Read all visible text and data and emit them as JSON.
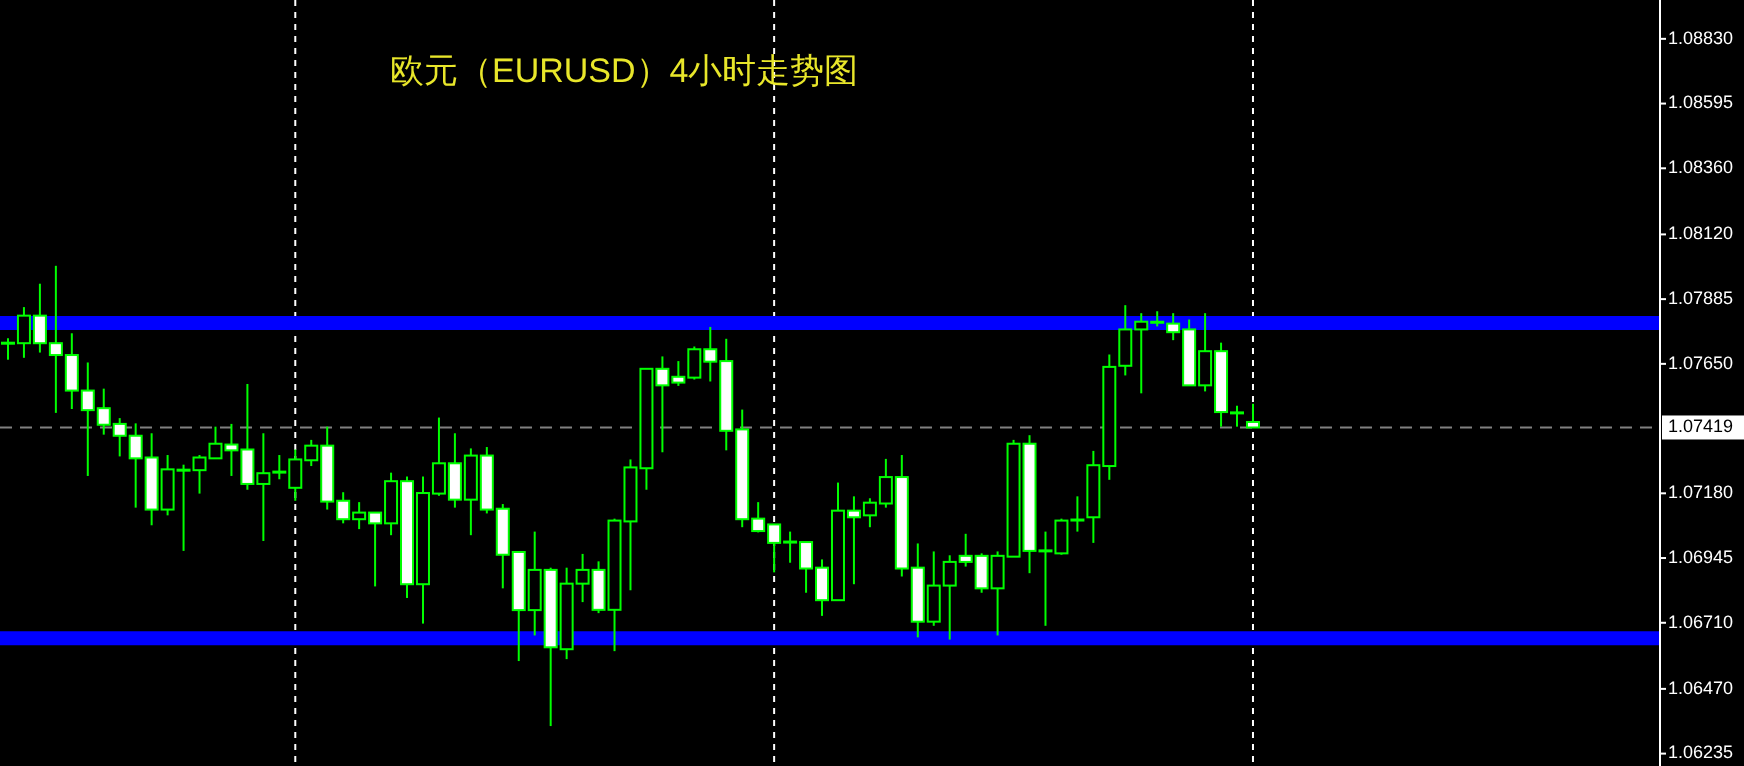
{
  "chart_data": {
    "type": "candlestick",
    "title": "欧元（EURUSD）4小时走势图",
    "categories": [
      null,
      null,
      null,
      null,
      null,
      null,
      null,
      null,
      null,
      null,
      null,
      null,
      null,
      null,
      null,
      null,
      null,
      null,
      null,
      null,
      null,
      null,
      null,
      null,
      null,
      null,
      null,
      null,
      null,
      null,
      null,
      null,
      null,
      null,
      null,
      null,
      null,
      null,
      null,
      null,
      null,
      null,
      null,
      null,
      null,
      null,
      null,
      null,
      null,
      null,
      null,
      null,
      null,
      null,
      null,
      null,
      null,
      null,
      null,
      null,
      null,
      null,
      null,
      null,
      null,
      null,
      null,
      null,
      null,
      null,
      null,
      null,
      null,
      null,
      null,
      null,
      null,
      null,
      null,
      null,
      null,
      null,
      null,
      null,
      null,
      null,
      null,
      null,
      null,
      null,
      null,
      null,
      null,
      null,
      null,
      null,
      null,
      null,
      null,
      null,
      null,
      null,
      null,
      null
    ],
    "ohlc": [
      [
        1.07725,
        1.07743,
        1.07665,
        1.07725
      ],
      [
        1.07725,
        1.07856,
        1.07672,
        1.07825
      ],
      [
        1.07825,
        1.07941,
        1.07691,
        1.07725
      ],
      [
        1.07725,
        1.08006,
        1.07472,
        1.07682
      ],
      [
        1.07682,
        1.07761,
        1.07486,
        1.07553
      ],
      [
        1.07553,
        1.07655,
        1.07243,
        1.07482
      ],
      [
        1.07489,
        1.0756,
        1.07393,
        1.07429
      ],
      [
        1.07432,
        1.07453,
        1.07314,
        1.07389
      ],
      [
        1.07389,
        1.07434,
        1.07128,
        1.07307
      ],
      [
        1.0731,
        1.07398,
        1.07064,
        1.07121
      ],
      [
        1.07121,
        1.07319,
        1.071,
        1.07267
      ],
      [
        1.07264,
        1.07284,
        1.06971,
        1.07264
      ],
      [
        1.07264,
        1.07319,
        1.07179,
        1.0731
      ],
      [
        1.07307,
        1.07422,
        1.07307,
        1.0736
      ],
      [
        1.07357,
        1.07432,
        1.07243,
        1.07336
      ],
      [
        1.07339,
        1.07577,
        1.07193,
        1.07214
      ],
      [
        1.07214,
        1.07398,
        1.07007,
        1.07253
      ],
      [
        1.07257,
        1.07319,
        1.07231,
        1.07257
      ],
      [
        1.072,
        1.07339,
        1.07153,
        1.07303
      ],
      [
        1.073,
        1.07374,
        1.07279,
        1.07353
      ],
      [
        1.07353,
        1.07422,
        1.07121,
        1.0715
      ],
      [
        1.07153,
        1.07184,
        1.07071,
        1.07086
      ],
      [
        1.07086,
        1.07148,
        1.0705,
        1.0711
      ],
      [
        1.0711,
        1.0711,
        1.06842,
        1.07071
      ],
      [
        1.07071,
        1.07255,
        1.07028,
        1.07224
      ],
      [
        1.07224,
        1.07241,
        1.068,
        1.0685
      ],
      [
        1.0685,
        1.07241,
        1.06707,
        1.07181
      ],
      [
        1.07179,
        1.07455,
        1.07171,
        1.07289
      ],
      [
        1.07289,
        1.07398,
        1.07128,
        1.07157
      ],
      [
        1.07157,
        1.07343,
        1.07028,
        1.07317
      ],
      [
        1.07317,
        1.07348,
        1.07107,
        1.07121
      ],
      [
        1.07124,
        1.07141,
        1.06835,
        1.06957
      ],
      [
        1.06967,
        1.06967,
        1.06571,
        1.06756
      ],
      [
        1.06756,
        1.07041,
        1.06664,
        1.06902
      ],
      [
        1.06902,
        1.0691,
        1.06335,
        1.06621
      ],
      [
        1.06614,
        1.0691,
        1.06578,
        1.06852
      ],
      [
        1.06852,
        1.0696,
        1.06785,
        1.06902
      ],
      [
        1.06902,
        1.06933,
        1.06745,
        1.06757
      ],
      [
        1.06757,
        1.07088,
        1.06607,
        1.07081
      ],
      [
        1.07078,
        1.07303,
        1.06828,
        1.07274
      ],
      [
        1.07271,
        1.07632,
        1.07193,
        1.07632
      ],
      [
        1.07632,
        1.07677,
        1.07329,
        1.07572
      ],
      [
        1.07603,
        1.0766,
        1.0757,
        1.07582
      ],
      [
        1.076,
        1.07713,
        1.07593,
        1.07703
      ],
      [
        1.07703,
        1.07784,
        1.07586,
        1.07658
      ],
      [
        1.0766,
        1.07741,
        1.07336,
        1.07407
      ],
      [
        1.07412,
        1.07484,
        1.07057,
        1.07086
      ],
      [
        1.07088,
        1.07148,
        1.07038,
        1.07043
      ],
      [
        1.07067,
        1.07067,
        1.06893,
        1.07
      ],
      [
        1.07003,
        1.07041,
        1.06928,
        1.07003
      ],
      [
        1.07003,
        1.07003,
        1.06819,
        1.06907
      ],
      [
        1.0691,
        1.0694,
        1.06735,
        1.06792
      ],
      [
        1.06792,
        1.07219,
        1.06792,
        1.07117
      ],
      [
        1.07117,
        1.07169,
        1.0685,
        1.07093
      ],
      [
        1.071,
        1.07162,
        1.07057,
        1.07146
      ],
      [
        1.07143,
        1.07305,
        1.07128,
        1.07239
      ],
      [
        1.07239,
        1.07319,
        1.06878,
        1.06907
      ],
      [
        1.0691,
        1.06998,
        1.06657,
        1.06714
      ],
      [
        1.06714,
        1.06969,
        1.06699,
        1.06845
      ],
      [
        1.06845,
        1.06955,
        1.06649,
        1.06931
      ],
      [
        1.06953,
        1.07033,
        1.06914,
        1.06931
      ],
      [
        1.06953,
        1.06962,
        1.06819,
        1.06835
      ],
      [
        1.06835,
        1.06969,
        1.06664,
        1.06953
      ],
      [
        1.0695,
        1.07374,
        1.0695,
        1.0736
      ],
      [
        1.0736,
        1.07391,
        1.0689,
        1.06971
      ],
      [
        1.06971,
        1.07041,
        1.06699,
        1.06971
      ],
      [
        1.06962,
        1.07088,
        1.06957,
        1.07081
      ],
      [
        1.07083,
        1.07169,
        1.07041,
        1.07083
      ],
      [
        1.07093,
        1.07334,
        1.07,
        1.07282
      ],
      [
        1.07279,
        1.07684,
        1.07229,
        1.07639
      ],
      [
        1.07643,
        1.07863,
        1.07608,
        1.07775
      ],
      [
        1.07775,
        1.07834,
        1.07543,
        1.07803
      ],
      [
        1.07801,
        1.07841,
        1.07786,
        1.07801
      ],
      [
        1.07796,
        1.07834,
        1.07736,
        1.07765
      ],
      [
        1.07775,
        1.07811,
        1.07572,
        1.07572
      ],
      [
        1.07572,
        1.07834,
        1.0755,
        1.07696
      ],
      [
        1.07696,
        1.07727,
        1.07422,
        1.07475
      ],
      [
        1.07472,
        1.07498,
        1.07422,
        1.07472
      ],
      [
        1.07439,
        1.07505,
        1.07419,
        1.07419
      ],
      null,
      null,
      null,
      null,
      null,
      null,
      null,
      null,
      null,
      null,
      null,
      null,
      null,
      null,
      null,
      null,
      null,
      null,
      null,
      null,
      null,
      null,
      null,
      null,
      null
    ],
    "ylim": [
      1.0619,
      1.08971
    ],
    "yticks": [
      1.06235,
      {
        "value": 1.0647,
        "label": "1.06470"
      },
      {
        "value": 1.0671,
        "label": "1.06710"
      },
      1.06945,
      {
        "value": 1.0718,
        "label": "1.07180"
      },
      {
        "value": 1.0765,
        "label": "1.07650"
      },
      1.07885,
      {
        "value": 1.0812,
        "label": "1.08120"
      },
      {
        "value": 1.0836,
        "label": "1.08360"
      },
      1.08595,
      {
        "value": 1.0883,
        "label": "1.08830"
      }
    ],
    "grid": "x",
    "ref_lines": [
      {
        "axis": "y",
        "value": 1.07798,
        "color": "#0000ff",
        "line_style": "solid"
      },
      {
        "axis": "y",
        "value": 1.06654,
        "color": "#0000ff",
        "line_style": "solid"
      },
      {
        "axis": "y",
        "value": 1.07419,
        "label": "1.07419",
        "color": "#808080",
        "line_style": "dashed"
      }
    ]
  }
}
